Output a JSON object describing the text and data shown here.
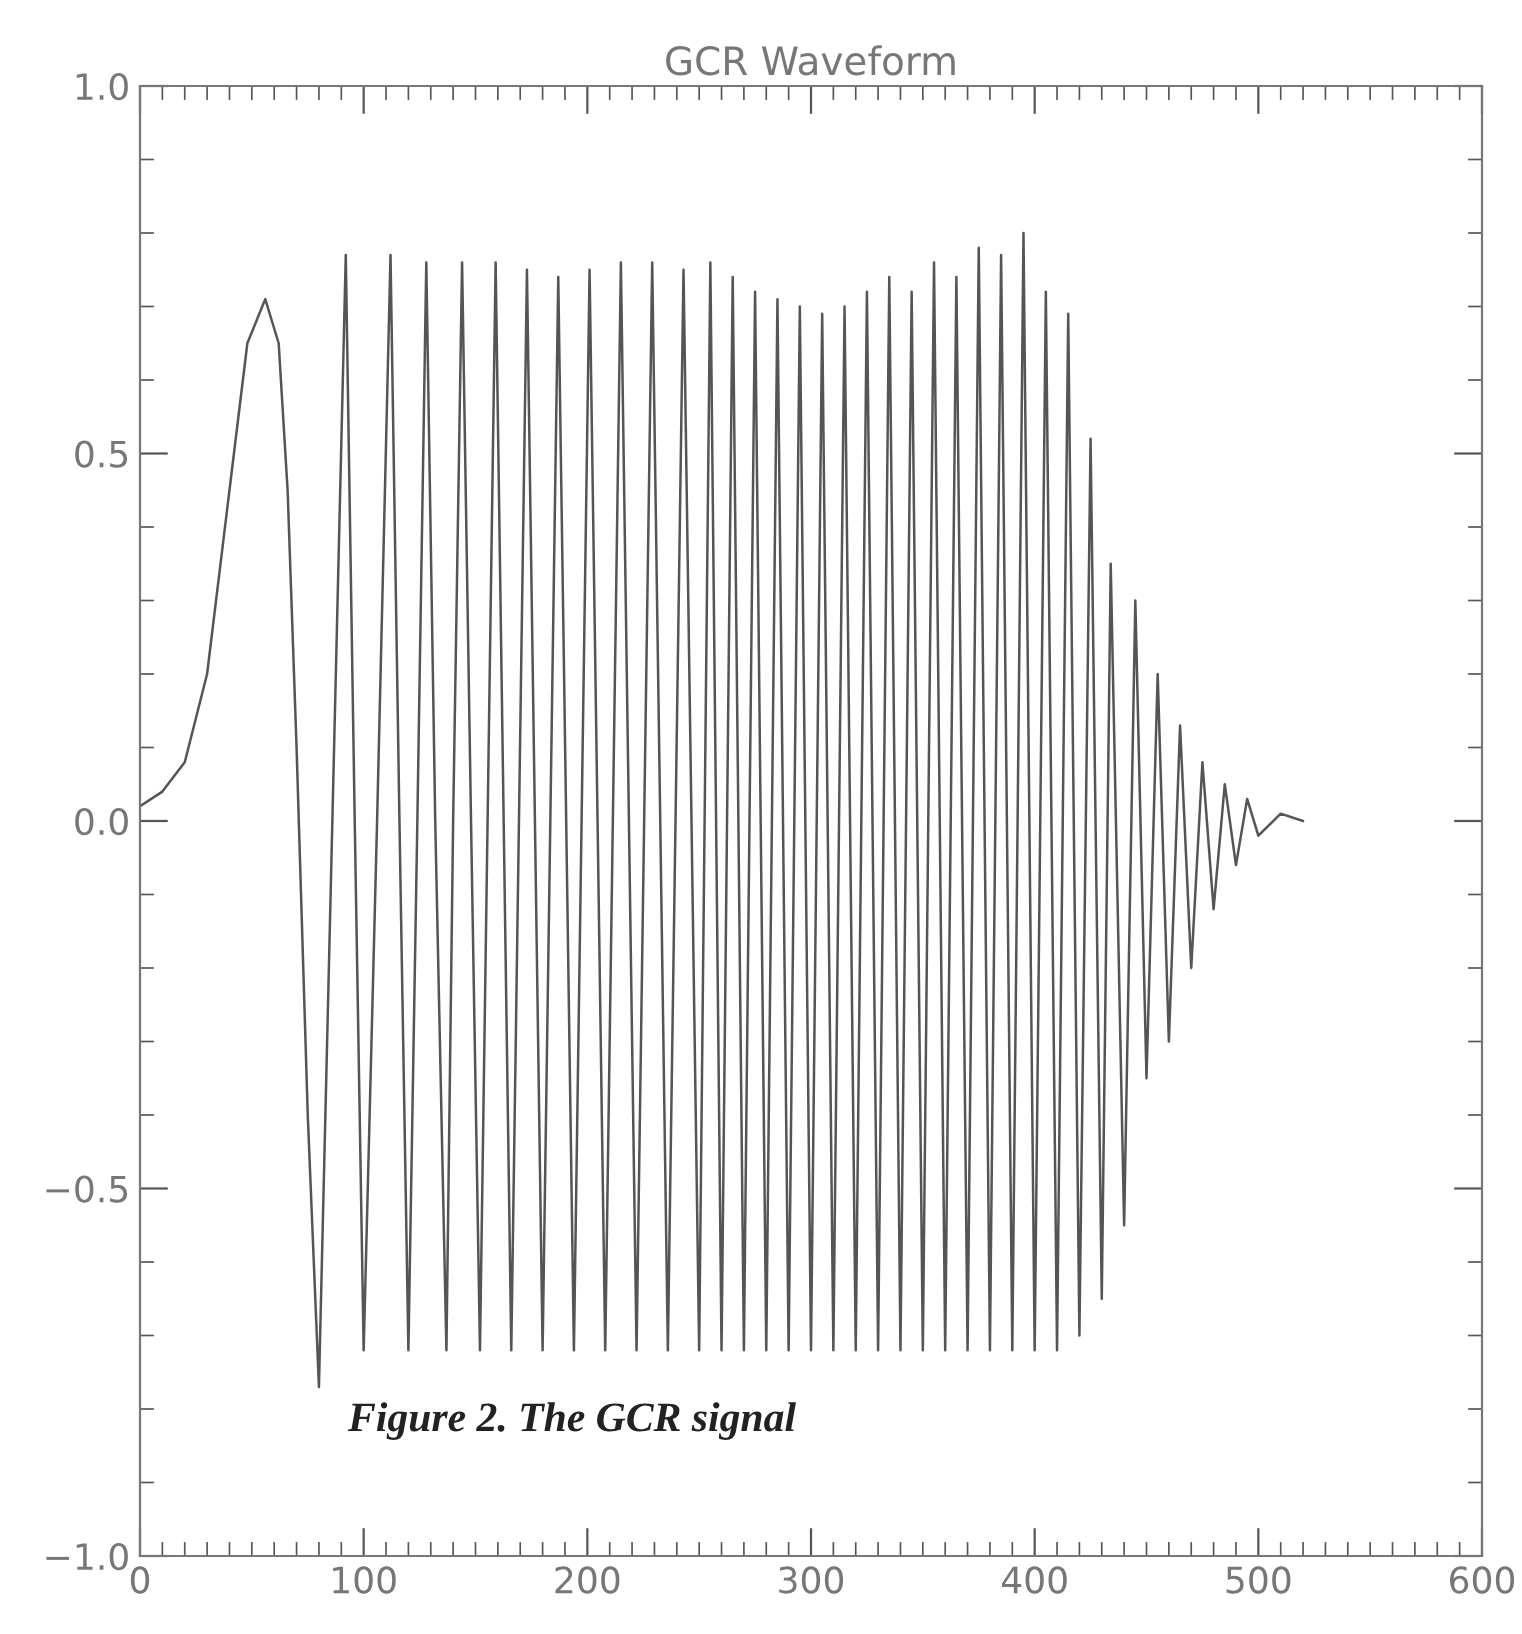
{
  "chart_data": {
    "type": "line",
    "title": "GCR Waveform",
    "x": [
      0,
      10,
      20,
      30,
      40,
      48,
      56,
      62,
      66,
      70,
      75,
      80,
      86,
      92,
      96,
      100,
      106,
      112,
      116,
      120,
      124,
      128,
      132,
      137,
      140,
      144,
      148,
      152,
      159,
      166,
      173,
      180,
      187,
      194,
      201,
      208,
      215,
      222,
      229,
      236,
      243,
      250,
      255,
      260,
      265,
      270,
      275,
      280,
      285,
      290,
      295,
      300,
      305,
      310,
      315,
      320,
      325,
      330,
      335,
      340,
      345,
      350,
      355,
      360,
      365,
      370,
      375,
      380,
      385,
      390,
      395,
      400,
      405,
      410,
      415,
      420,
      425,
      430,
      434,
      440,
      445,
      450,
      455,
      460,
      465,
      470,
      475,
      480,
      485,
      490,
      495,
      500,
      510,
      520
    ],
    "series": [
      {
        "color": "#555555",
        "values": [
          0.02,
          0.04,
          0.08,
          0.2,
          0.45,
          0.65,
          0.71,
          0.65,
          0.45,
          0.1,
          -0.4,
          -0.77,
          0.0,
          0.77,
          0.0,
          -0.72,
          0.0,
          0.77,
          0.0,
          -0.72,
          0.0,
          0.76,
          0.0,
          -0.72,
          0.0,
          0.76,
          0.0,
          -0.72,
          0.76,
          -0.72,
          0.75,
          -0.72,
          0.74,
          -0.72,
          0.75,
          -0.72,
          0.76,
          -0.72,
          0.76,
          -0.72,
          0.75,
          -0.72,
          0.76,
          -0.72,
          0.74,
          -0.72,
          0.72,
          -0.72,
          0.71,
          -0.72,
          0.7,
          -0.72,
          0.69,
          -0.72,
          0.7,
          -0.72,
          0.72,
          -0.72,
          0.74,
          -0.72,
          0.72,
          -0.72,
          0.76,
          -0.72,
          0.74,
          -0.72,
          0.78,
          -0.72,
          0.77,
          -0.72,
          0.8,
          -0.72,
          0.72,
          -0.72,
          0.69,
          -0.7,
          0.52,
          -0.65,
          0.35,
          -0.55,
          0.3,
          -0.35,
          0.2,
          -0.3,
          0.13,
          -0.2,
          0.08,
          -0.12,
          0.05,
          -0.06,
          0.03,
          -0.02,
          0.01,
          0.0
        ]
      }
    ],
    "xlim": [
      0,
      600
    ],
    "xticks": [
      0,
      100,
      200,
      300,
      400,
      500,
      600
    ],
    "ylim": [
      -1.0,
      1.0
    ],
    "yticks": [
      {
        "value": -1.0,
        "label": "−1.0"
      },
      {
        "value": -0.5,
        "label": "−0.5"
      },
      {
        "value": 0.0,
        "label": "0.0"
      },
      {
        "value": 0.5,
        "label": "0.5"
      },
      {
        "value": 1.0,
        "label": "1.0"
      }
    ],
    "annotations": [
      "Figure 2. The GCR signal"
    ]
  }
}
